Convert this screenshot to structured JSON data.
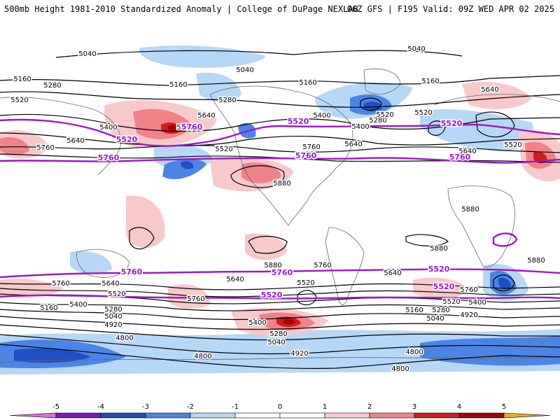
{
  "header": {
    "title": "500mb Height 1981-2010 Standardized Anomaly | College of DuPage NEXLAB",
    "run_info": "06Z GFS | F195 Valid: 09Z WED APR 02 2025"
  },
  "colors": {
    "contour_black": "#000000",
    "contour_purple": "#9a19c6",
    "coast": "#666666",
    "neg5": "#e06be0",
    "neg4": "#7a19c6",
    "neg3": "#1f4fc4",
    "neg2": "#4b84e4",
    "neg1": "#b7d7f7",
    "pos1": "#f8c9cb",
    "pos2": "#f08387",
    "pos3": "#d21c1c",
    "pos4": "#ad0000",
    "pos5": "#f2a91c"
  },
  "colorbar": {
    "ticks": [
      "-5",
      "-4",
      "-3",
      "-2",
      "-1",
      "0",
      "1",
      "2",
      "3",
      "4",
      "5"
    ]
  },
  "labels": {
    "black": [
      {
        "text": "5040"
      },
      {
        "text": "5040"
      },
      {
        "text": "5040"
      },
      {
        "text": "5160"
      },
      {
        "text": "5280"
      },
      {
        "text": "5160"
      },
      {
        "text": "5160"
      },
      {
        "text": "5160"
      },
      {
        "text": "5520"
      },
      {
        "text": "5280"
      },
      {
        "text": "5400"
      },
      {
        "text": "5640"
      },
      {
        "text": "5760"
      },
      {
        "text": "5640"
      },
      {
        "text": "5400"
      },
      {
        "text": "5760"
      },
      {
        "text": "5640"
      },
      {
        "text": "5520"
      },
      {
        "text": "5400"
      },
      {
        "text": "5520"
      },
      {
        "text": "5280"
      },
      {
        "text": "5640"
      },
      {
        "text": "5760"
      },
      {
        "text": "5760"
      },
      {
        "text": "5520"
      },
      {
        "text": "5640"
      },
      {
        "text": "5880"
      },
      {
        "text": "5880"
      },
      {
        "text": "5880"
      },
      {
        "text": "5880"
      },
      {
        "text": "5880"
      },
      {
        "text": "5760"
      },
      {
        "text": "5760"
      },
      {
        "text": "5640"
      },
      {
        "text": "5640"
      },
      {
        "text": "5520"
      },
      {
        "text": "5520"
      },
      {
        "text": "5400"
      },
      {
        "text": "5280"
      },
      {
        "text": "5040"
      },
      {
        "text": "4920"
      },
      {
        "text": "5160"
      },
      {
        "text": "5400"
      },
      {
        "text": "5280"
      },
      {
        "text": "5040"
      },
      {
        "text": "4920"
      },
      {
        "text": "4800"
      },
      {
        "text": "4800"
      },
      {
        "text": "4920"
      },
      {
        "text": "5160"
      },
      {
        "text": "5040"
      },
      {
        "text": "5520"
      },
      {
        "text": "5400"
      },
      {
        "text": "5280"
      },
      {
        "text": "4800"
      },
      {
        "text": "4800"
      },
      {
        "text": "5640"
      },
      {
        "text": "5760"
      },
      {
        "text": "5400"
      },
      {
        "text": "5520"
      },
      {
        "text": "5760"
      }
    ],
    "purple": [
      {
        "text": "5520"
      },
      {
        "text": "5520"
      },
      {
        "text": "5520"
      },
      {
        "text": "5760"
      },
      {
        "text": "5760"
      },
      {
        "text": "5760"
      },
      {
        "text": "5760"
      },
      {
        "text": "5760"
      },
      {
        "text": "5760"
      },
      {
        "text": "5520"
      },
      {
        "text": "5520"
      },
      {
        "text": "5520"
      }
    ]
  }
}
